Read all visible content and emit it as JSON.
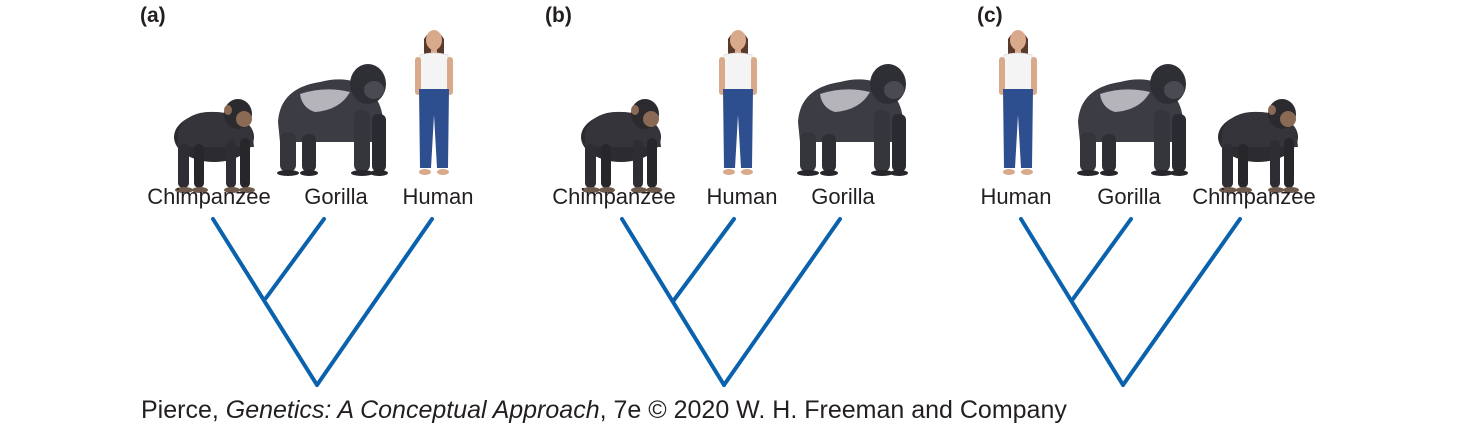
{
  "figure": {
    "panels": [
      {
        "label": "(a)",
        "taxa": [
          "Chimpanzee",
          "Gorilla",
          "Human"
        ],
        "sister_pair": [
          "Chimpanzee",
          "Gorilla"
        ]
      },
      {
        "label": "(b)",
        "taxa": [
          "Chimpanzee",
          "Human",
          "Gorilla"
        ],
        "sister_pair": [
          "Chimpanzee",
          "Human"
        ]
      },
      {
        "label": "(c)",
        "taxa": [
          "Human",
          "Gorilla",
          "Chimpanzee"
        ],
        "sister_pair": [
          "Human",
          "Gorilla"
        ]
      }
    ],
    "tree_color": "#0a62ad"
  },
  "credit": {
    "author": "Pierce, ",
    "title": "Genetics: A Conceptual Approach",
    "rest": ", 7e © 2020 W. H. Freeman and Company"
  },
  "icons": {
    "chimpanzee": "chimpanzee-icon",
    "gorilla": "gorilla-icon",
    "human": "human-icon"
  }
}
